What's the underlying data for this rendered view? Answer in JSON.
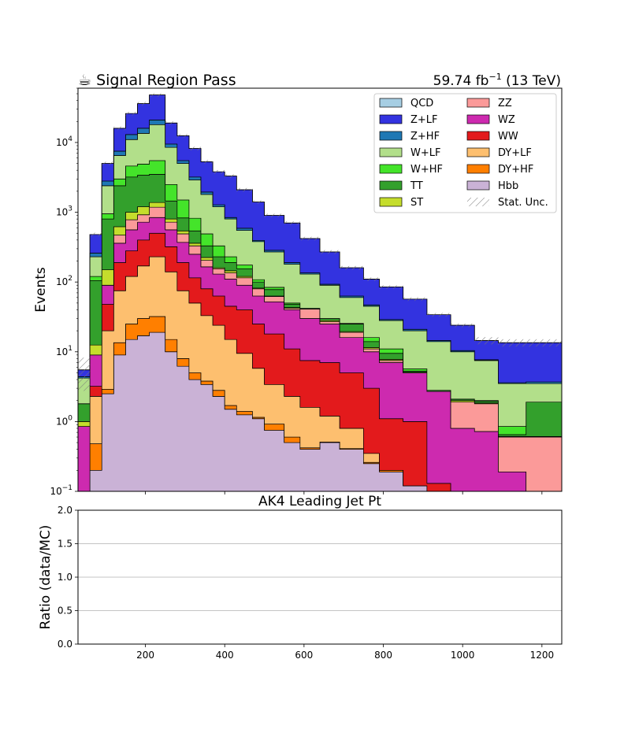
{
  "header": {
    "title_icon": "coffee-cup-icon",
    "title": "☕ Signal Region Pass",
    "lumi_value": "59.74 fb",
    "lumi_exp": "−1",
    "lumi_energy": "(13 TeV)"
  },
  "main_plot": {
    "ylabel": "Events",
    "xlabel": "AK4 Leading Jet Pt",
    "yscale": "log",
    "ylim": [
      0.1,
      60000
    ],
    "y_ticks": [
      {
        "v": 0.1,
        "m": "10",
        "e": "−1"
      },
      {
        "v": 1,
        "m": "10",
        "e": "0"
      },
      {
        "v": 10,
        "m": "10",
        "e": "1"
      },
      {
        "v": 100,
        "m": "10",
        "e": "2"
      },
      {
        "v": 1000,
        "m": "10",
        "e": "3"
      },
      {
        "v": 10000,
        "m": "10",
        "e": "4"
      }
    ]
  },
  "ratio_plot": {
    "ylabel": "Ratio (data/MC)",
    "ylim": [
      0,
      2
    ],
    "y_ticks": [
      "0.0",
      "0.5",
      "1.0",
      "1.5",
      "2.0"
    ],
    "grid_lines": [
      0.5,
      1.0,
      1.5
    ]
  },
  "x_axis": {
    "xlim": [
      30,
      1250
    ],
    "ticks": [
      "200",
      "400",
      "600",
      "800",
      "1000",
      "1200"
    ]
  },
  "legend": {
    "placement": "top-right",
    "columns": 2,
    "entries": [
      {
        "label": "QCD",
        "color": "#a6cee3"
      },
      {
        "label": "Z+LF",
        "color": "#3333e0"
      },
      {
        "label": "Z+HF",
        "color": "#1f78b4"
      },
      {
        "label": "W+LF",
        "color": "#b2df8a"
      },
      {
        "label": "W+HF",
        "color": "#44e42a"
      },
      {
        "label": "TT",
        "color": "#33a02c"
      },
      {
        "label": "ST",
        "color": "#c5dd2c"
      },
      {
        "label": "ZZ",
        "color": "#fb9a99"
      },
      {
        "label": "WZ",
        "color": "#cd2aaf"
      },
      {
        "label": "WW",
        "color": "#e31a1c"
      },
      {
        "label": "DY+LF",
        "color": "#fdbf6f"
      },
      {
        "label": "DY+HF",
        "color": "#ff7f00"
      },
      {
        "label": "Hbb",
        "color": "#cab2d6"
      },
      {
        "label": "Stat. Unc.",
        "color": "#888888"
      }
    ]
  },
  "chart_data": {
    "type": "bar",
    "stacked": true,
    "bin_edges": [
      30,
      60,
      90,
      120,
      150,
      180,
      210,
      250,
      280,
      310,
      340,
      370,
      400,
      430,
      470,
      500,
      550,
      590,
      640,
      690,
      750,
      790,
      850,
      910,
      970,
      1030,
      1090,
      1160,
      1250
    ],
    "stack_order_bottom_to_top": [
      "Hbb",
      "DY+HF",
      "DY+LF",
      "WW",
      "WZ",
      "ZZ",
      "ST",
      "TT",
      "W+HF",
      "W+LF",
      "Z+HF",
      "Z+LF",
      "QCD"
    ],
    "cumulative_tops": {
      "Hbb": [
        0.1,
        0.2,
        2.5,
        9,
        15,
        17,
        19,
        10,
        6.2,
        4,
        3.4,
        2.3,
        1.5,
        1.25,
        1.1,
        0.75,
        0.5,
        0.4,
        0.5,
        0.4,
        0.25,
        0.19,
        0.12,
        0.1,
        0.1,
        0.1,
        0.1,
        0.1
      ],
      "DY+HF": [
        0.1,
        0.48,
        2.9,
        13.5,
        25,
        30,
        32,
        15,
        8,
        5,
        3.8,
        2.8,
        1.7,
        1.4,
        1.15,
        0.92,
        0.6,
        0.42,
        0.51,
        0.41,
        0.26,
        0.2,
        0.12,
        0.1,
        0.1,
        0.1,
        0.1,
        0.1
      ],
      "DY+LF": [
        0.1,
        2.3,
        20,
        75,
        120,
        170,
        230,
        140,
        75,
        50,
        33,
        24,
        15,
        9.5,
        5.8,
        3.4,
        2.3,
        1.6,
        1.2,
        0.8,
        0.35,
        0.2,
        0.12,
        0.1,
        0.1,
        0.1,
        0.1,
        0.1
      ],
      "WW": [
        0.1,
        3.2,
        48,
        190,
        280,
        400,
        500,
        320,
        190,
        115,
        80,
        63,
        45,
        40,
        25,
        18,
        11,
        7.5,
        7,
        5,
        3,
        1.1,
        1,
        0.13,
        0.1,
        0.1,
        0.1,
        0.1
      ],
      "WZ": [
        0.85,
        9,
        90,
        360,
        560,
        720,
        840,
        560,
        370,
        250,
        165,
        130,
        110,
        90,
        63,
        52,
        40,
        30,
        25,
        16,
        10,
        7,
        5,
        2.7,
        0.8,
        0.72,
        0.19,
        0.1
      ],
      "ZZ": [
        0.85,
        9,
        90,
        470,
        780,
        920,
        1180,
        720,
        490,
        330,
        205,
        155,
        135,
        115,
        80,
        62,
        42,
        41,
        27,
        19,
        11,
        7.5,
        5,
        2.7,
        1.9,
        1.8,
        0.6,
        0.6
      ],
      "ST": [
        1,
        12.5,
        150,
        620,
        1000,
        1200,
        1380,
        800,
        540,
        360,
        225,
        160,
        145,
        120,
        82,
        63,
        43,
        41,
        28,
        19.5,
        11.5,
        7.8,
        5.1,
        2.7,
        2,
        1.85,
        0.61,
        0.61
      ],
      "TT": [
        1.8,
        105,
        800,
        2400,
        3200,
        3400,
        3500,
        1450,
        830,
        540,
        330,
        230,
        190,
        155,
        100,
        78,
        48,
        42,
        30,
        25,
        14,
        9.5,
        5.3,
        2.8,
        2.1,
        1.95,
        0.65,
        1.9
      ],
      "W+HF": [
        1.8,
        120,
        950,
        3000,
        4600,
        4900,
        5500,
        2500,
        1500,
        820,
        490,
        330,
        230,
        175,
        108,
        84,
        50,
        42,
        30,
        25.5,
        16,
        11,
        5.7,
        2.8,
        2.1,
        2,
        0.85,
        1.9
      ],
      "W+LF": [
        4.2,
        230,
        2400,
        6500,
        11000,
        13500,
        18000,
        8500,
        5000,
        2900,
        1800,
        1200,
        800,
        550,
        380,
        270,
        180,
        130,
        90,
        60,
        45,
        28,
        20,
        14,
        10,
        7.5,
        3.5,
        3.5
      ],
      "Z+HF": [
        4.4,
        260,
        2800,
        7500,
        13000,
        16000,
        21000,
        9500,
        5500,
        3200,
        1950,
        1280,
        840,
        590,
        395,
        285,
        190,
        135,
        93,
        63,
        47,
        29,
        21,
        14.5,
        10.4,
        7.7,
        3.6,
        3.7
      ],
      "Z+LF": [
        5.5,
        480,
        5000,
        16000,
        26000,
        36000,
        48000,
        19000,
        12500,
        8200,
        5300,
        3800,
        3300,
        2100,
        1400,
        900,
        700,
        420,
        270,
        160,
        110,
        85,
        57,
        34,
        24,
        14.5,
        13.5,
        13.5
      ],
      "QCD": [
        5.5,
        480,
        5000,
        16000,
        26000,
        36000,
        48000,
        19000,
        12500,
        8200,
        5300,
        3800,
        3300,
        2100,
        1400,
        900,
        700,
        420,
        270,
        160,
        110,
        85,
        57,
        34,
        24,
        14.5,
        13.5,
        13.5
      ]
    }
  }
}
